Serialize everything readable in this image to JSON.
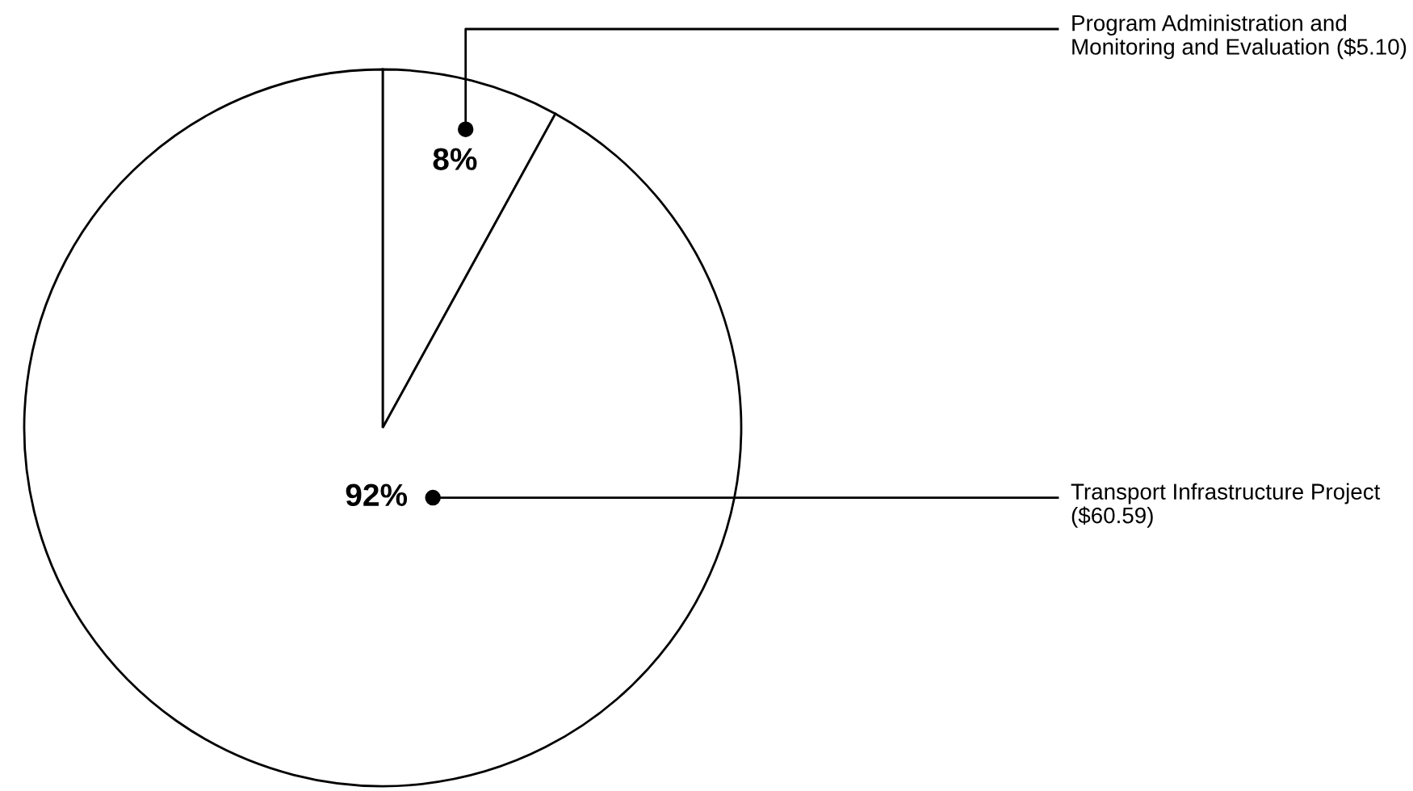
{
  "chart_data": {
    "type": "pie",
    "categories": [
      "Program Administration and\nMonitoring and Evaluation ($5.10)",
      "Transport Infrastructure Project\n($60.59)"
    ],
    "values": [
      8,
      92
    ],
    "colors": [
      "#ffffff",
      "#ffffff"
    ],
    "value_labels": [
      "8%",
      "92%"
    ]
  }
}
